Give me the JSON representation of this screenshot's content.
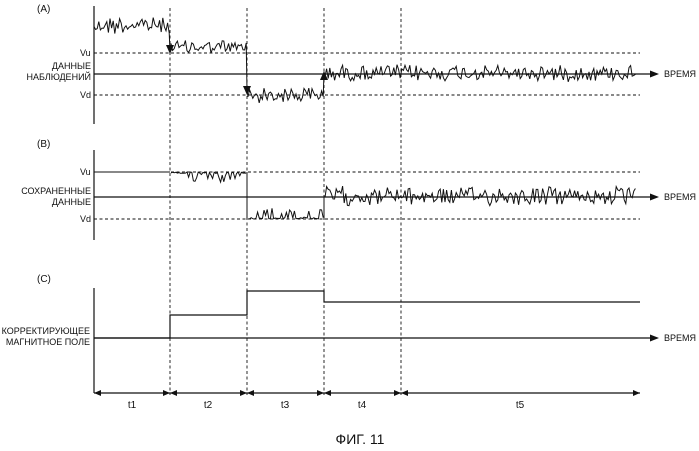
{
  "figure": {
    "caption": "ФИГ. 11",
    "x_axis_label": "ВРЕМЯ",
    "panels": [
      {
        "tag": "(A)",
        "ylabel": [
          "ДАННЫЕ",
          "НАБЛЮДЕНИЙ"
        ],
        "upper_threshold": "Vu",
        "lower_threshold": "Vd"
      },
      {
        "tag": "(B)",
        "ylabel": [
          "СОХРАНЕННЫЕ",
          "ДАННЫЕ"
        ],
        "upper_threshold": "Vu",
        "lower_threshold": "Vd"
      },
      {
        "tag": "(C)",
        "ylabel": [
          "КОРРЕКТИРУЮЩЕЕ",
          "МАГНИТНОЕ ПОЛЕ"
        ]
      }
    ],
    "intervals": [
      "t1",
      "t2",
      "t3",
      "t4",
      "t5"
    ]
  }
}
